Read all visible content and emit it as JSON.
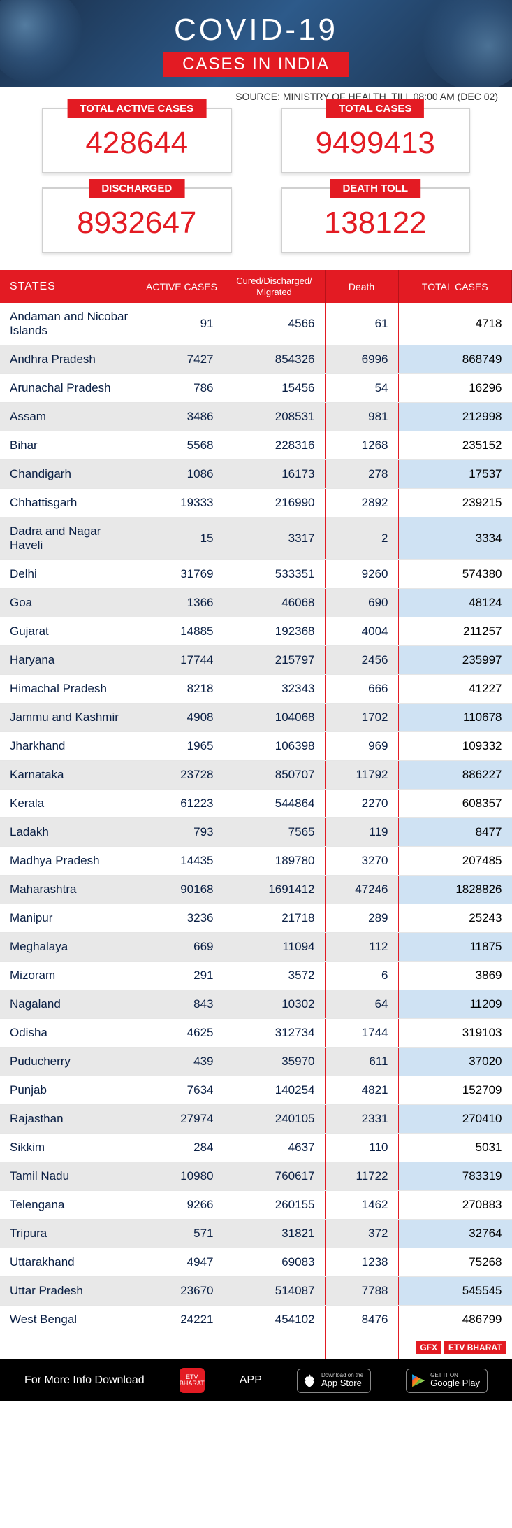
{
  "header": {
    "title": "COVID-19",
    "subtitle": "CASES IN INDIA"
  },
  "source": "SOURCE: MINISTRY OF HEALTH, TILL 08:00 AM (DEC 02)",
  "stats": {
    "active": {
      "label": "TOTAL ACTIVE CASES",
      "value": "428644"
    },
    "total": {
      "label": "TOTAL CASES",
      "value": "9499413"
    },
    "discharged": {
      "label": "DISCHARGED",
      "value": "8932647"
    },
    "deaths": {
      "label": "DEATH TOLL",
      "value": "138122"
    }
  },
  "table": {
    "columns": [
      "STATES",
      "ACTIVE CASES",
      "Cured/Discharged/\nMigrated",
      "Death",
      "TOTAL CASES"
    ],
    "rows": [
      [
        "Andaman and Nicobar Islands",
        "91",
        "4566",
        "61",
        "4718"
      ],
      [
        "Andhra Pradesh",
        "7427",
        "854326",
        "6996",
        "868749"
      ],
      [
        "Arunachal Pradesh",
        "786",
        "15456",
        "54",
        "16296"
      ],
      [
        "Assam",
        "3486",
        "208531",
        "981",
        "212998"
      ],
      [
        "Bihar",
        "5568",
        "228316",
        "1268",
        "235152"
      ],
      [
        "Chandigarh",
        "1086",
        "16173",
        "278",
        "17537"
      ],
      [
        "Chhattisgarh",
        "19333",
        "216990",
        "2892",
        "239215"
      ],
      [
        "Dadra and Nagar Haveli",
        "15",
        "3317",
        "2",
        "3334"
      ],
      [
        "Delhi",
        "31769",
        "533351",
        "9260",
        "574380"
      ],
      [
        "Goa",
        "1366",
        "46068",
        "690",
        "48124"
      ],
      [
        "Gujarat",
        "14885",
        "192368",
        "4004",
        "211257"
      ],
      [
        "Haryana",
        "17744",
        "215797",
        "2456",
        "235997"
      ],
      [
        "Himachal Pradesh",
        "8218",
        "32343",
        "666",
        "41227"
      ],
      [
        "Jammu and Kashmir",
        "4908",
        "104068",
        "1702",
        "110678"
      ],
      [
        "Jharkhand",
        "1965",
        "106398",
        "969",
        "109332"
      ],
      [
        "Karnataka",
        "23728",
        "850707",
        "11792",
        "886227"
      ],
      [
        "Kerala",
        "61223",
        "544864",
        "2270",
        "608357"
      ],
      [
        "Ladakh",
        "793",
        "7565",
        "119",
        "8477"
      ],
      [
        "Madhya Pradesh",
        "14435",
        "189780",
        "3270",
        "207485"
      ],
      [
        "Maharashtra",
        "90168",
        "1691412",
        "47246",
        "1828826"
      ],
      [
        "Manipur",
        "3236",
        "21718",
        "289",
        "25243"
      ],
      [
        "Meghalaya",
        "669",
        "11094",
        "112",
        "11875"
      ],
      [
        "Mizoram",
        "291",
        "3572",
        "6",
        "3869"
      ],
      [
        "Nagaland",
        "843",
        "10302",
        "64",
        "11209"
      ],
      [
        "Odisha",
        "4625",
        "312734",
        "1744",
        "319103"
      ],
      [
        "Puducherry",
        "439",
        "35970",
        "611",
        "37020"
      ],
      [
        "Punjab",
        "7634",
        "140254",
        "4821",
        "152709"
      ],
      [
        "Rajasthan",
        "27974",
        "240105",
        "2331",
        "270410"
      ],
      [
        "Sikkim",
        "284",
        "4637",
        "110",
        "5031"
      ],
      [
        "Tamil Nadu",
        "10980",
        "760617",
        "11722",
        "783319"
      ],
      [
        "Telengana",
        "9266",
        "260155",
        "1462",
        "270883"
      ],
      [
        "Tripura",
        "571",
        "31821",
        "372",
        "32764"
      ],
      [
        "Uttarakhand",
        "4947",
        "69083",
        "1238",
        "75268"
      ],
      [
        "Uttar Pradesh",
        "23670",
        "514087",
        "7788",
        "545545"
      ],
      [
        "West Bengal",
        "24221",
        "454102",
        "8476",
        "486799"
      ]
    ],
    "gfx": {
      "label1": "GFX",
      "label2": "ETV BHARAT"
    }
  },
  "footer": {
    "text": "For More Info Download",
    "app": "APP",
    "appstore": {
      "small": "Download on the",
      "big": "App Store"
    },
    "playstore": {
      "small": "GET IT ON",
      "big": "Google Play"
    }
  },
  "colors": {
    "accent_red": "#e31b23",
    "header_bg": "#1a2f4a",
    "text_navy": "#0a1f44",
    "row_alt": "#e8e8e8",
    "total_alt": "#cfe2f3"
  }
}
